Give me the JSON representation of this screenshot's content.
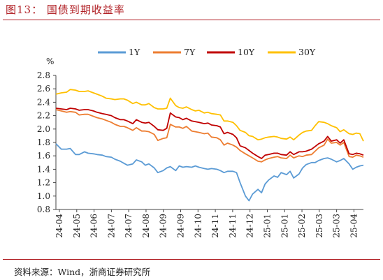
{
  "figure": {
    "title": "图13：  国债到期收益率",
    "source": "资料来源：Wind，浙商证券研究所"
  },
  "chart_data": {
    "type": "line",
    "ylabel": "%",
    "ylim": [
      0.8,
      2.8
    ],
    "yticks": [
      "0.8",
      "1.0",
      "1.2",
      "1.4",
      "1.6",
      "1.8",
      "2.0",
      "2.2",
      "2.4",
      "2.6",
      "2.8"
    ],
    "xtick_labels": [
      "24-04",
      "24-05",
      "24-06",
      "24-07",
      "24-07",
      "24-08",
      "24-09",
      "24-09",
      "24-10",
      "24-11",
      "24-11",
      "24-12",
      "25-01",
      "25-01",
      "25-02",
      "25-03",
      "25-03",
      "25-04"
    ],
    "legend_position": "top",
    "grid": false,
    "x": [
      0,
      0.3,
      0.6,
      0.8,
      1.1,
      1.3,
      1.6,
      1.8,
      2.1,
      2.3,
      2.6,
      2.8,
      3.1,
      3.3,
      3.6,
      3.8,
      4.0,
      4.3,
      4.5,
      4.8,
      5.0,
      5.2,
      5.5,
      5.7,
      6.0,
      6.2,
      6.4,
      6.7,
      6.9,
      7.1,
      7.3,
      7.6,
      7.8,
      8.0,
      8.3,
      8.5,
      8.7,
      9.0,
      9.2,
      9.4,
      9.6,
      9.9,
      10.1,
      10.3,
      10.6,
      10.8,
      11.0,
      11.3,
      11.5,
      11.7,
      11.9,
      12.2,
      12.4,
      12.6,
      12.9,
      13.1,
      13.3,
      13.6,
      13.8,
      14.0,
      14.3,
      14.5,
      14.7,
      15.0,
      15.2,
      15.4,
      15.7,
      15.9,
      16.1,
      16.4,
      16.6,
      16.8,
      17.0,
      17.2
    ],
    "series": [
      {
        "name": "1Y",
        "color": "#5b9bd5",
        "values": [
          1.78,
          1.7,
          1.7,
          1.71,
          1.62,
          1.62,
          1.66,
          1.64,
          1.63,
          1.62,
          1.61,
          1.59,
          1.58,
          1.55,
          1.52,
          1.49,
          1.46,
          1.48,
          1.54,
          1.51,
          1.46,
          1.48,
          1.42,
          1.35,
          1.38,
          1.42,
          1.44,
          1.38,
          1.45,
          1.43,
          1.44,
          1.43,
          1.45,
          1.43,
          1.41,
          1.4,
          1.41,
          1.4,
          1.38,
          1.35,
          1.37,
          1.37,
          1.35,
          1.2,
          1.0,
          0.93,
          1.03,
          1.1,
          1.05,
          1.18,
          1.24,
          1.3,
          1.28,
          1.35,
          1.32,
          1.37,
          1.27,
          1.33,
          1.42,
          1.47,
          1.5,
          1.5,
          1.53,
          1.56,
          1.57,
          1.55,
          1.51,
          1.53,
          1.56,
          1.48,
          1.4,
          1.43,
          1.45,
          1.46
        ]
      },
      {
        "name": "7Y",
        "color": "#ed7d31",
        "values": [
          2.29,
          2.27,
          2.25,
          2.26,
          2.25,
          2.21,
          2.22,
          2.22,
          2.19,
          2.17,
          2.15,
          2.13,
          2.1,
          2.07,
          2.04,
          2.04,
          2.02,
          1.98,
          2.02,
          1.97,
          1.97,
          1.96,
          1.92,
          1.83,
          1.86,
          1.87,
          2.07,
          2.03,
          2.03,
          2.01,
          2.04,
          1.97,
          1.96,
          1.95,
          1.93,
          1.94,
          1.88,
          1.87,
          1.84,
          1.76,
          1.79,
          1.76,
          1.73,
          1.68,
          1.63,
          1.6,
          1.57,
          1.52,
          1.51,
          1.54,
          1.56,
          1.58,
          1.59,
          1.57,
          1.56,
          1.61,
          1.57,
          1.6,
          1.59,
          1.61,
          1.62,
          1.67,
          1.72,
          1.76,
          1.85,
          1.79,
          1.8,
          1.76,
          1.8,
          1.59,
          1.58,
          1.61,
          1.6,
          1.58
        ]
      },
      {
        "name": "10Y",
        "color": "#c00000",
        "values": [
          2.31,
          2.3,
          2.29,
          2.31,
          2.3,
          2.28,
          2.29,
          2.29,
          2.27,
          2.25,
          2.23,
          2.22,
          2.2,
          2.17,
          2.14,
          2.14,
          2.12,
          2.08,
          2.14,
          2.1,
          2.09,
          2.1,
          2.04,
          1.99,
          1.98,
          2.01,
          2.24,
          2.18,
          2.17,
          2.14,
          2.16,
          2.12,
          2.11,
          2.1,
          2.08,
          2.09,
          2.06,
          2.05,
          2.03,
          1.93,
          1.95,
          1.92,
          1.87,
          1.75,
          1.72,
          1.68,
          1.64,
          1.59,
          1.56,
          1.61,
          1.62,
          1.64,
          1.64,
          1.62,
          1.61,
          1.66,
          1.62,
          1.66,
          1.66,
          1.67,
          1.7,
          1.74,
          1.78,
          1.82,
          1.89,
          1.82,
          1.84,
          1.79,
          1.84,
          1.63,
          1.62,
          1.64,
          1.63,
          1.61
        ]
      },
      {
        "name": "30Y",
        "color": "#ffc000",
        "values": [
          2.52,
          2.54,
          2.55,
          2.59,
          2.58,
          2.56,
          2.56,
          2.57,
          2.54,
          2.52,
          2.49,
          2.46,
          2.45,
          2.44,
          2.45,
          2.45,
          2.43,
          2.38,
          2.4,
          2.36,
          2.36,
          2.38,
          2.32,
          2.3,
          2.3,
          2.31,
          2.46,
          2.35,
          2.32,
          2.31,
          2.33,
          2.29,
          2.27,
          2.28,
          2.24,
          2.25,
          2.23,
          2.22,
          2.21,
          2.12,
          2.12,
          2.1,
          2.05,
          1.98,
          1.95,
          1.9,
          1.89,
          1.84,
          1.85,
          1.87,
          1.88,
          1.89,
          1.88,
          1.86,
          1.85,
          1.88,
          1.84,
          1.91,
          1.95,
          1.97,
          1.98,
          2.05,
          2.11,
          2.1,
          2.08,
          2.05,
          2.02,
          1.96,
          1.99,
          1.93,
          1.92,
          1.94,
          1.93,
          1.82
        ]
      }
    ]
  }
}
